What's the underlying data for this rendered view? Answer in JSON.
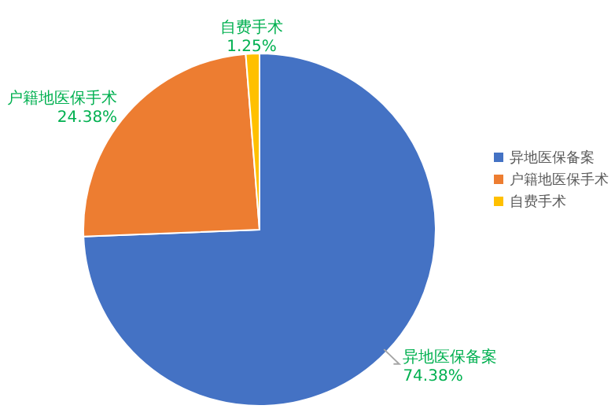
{
  "chart_data": {
    "type": "pie",
    "categories": [
      "异地医保备案",
      "户籍地医保手术",
      "自费手术"
    ],
    "values": [
      74.38,
      24.38,
      1.25
    ],
    "colors": [
      "#4472c4",
      "#ed7d31",
      "#ffc000"
    ],
    "value_labels": [
      "74.38%",
      "24.38%",
      "1.25%"
    ],
    "legend": "right"
  }
}
